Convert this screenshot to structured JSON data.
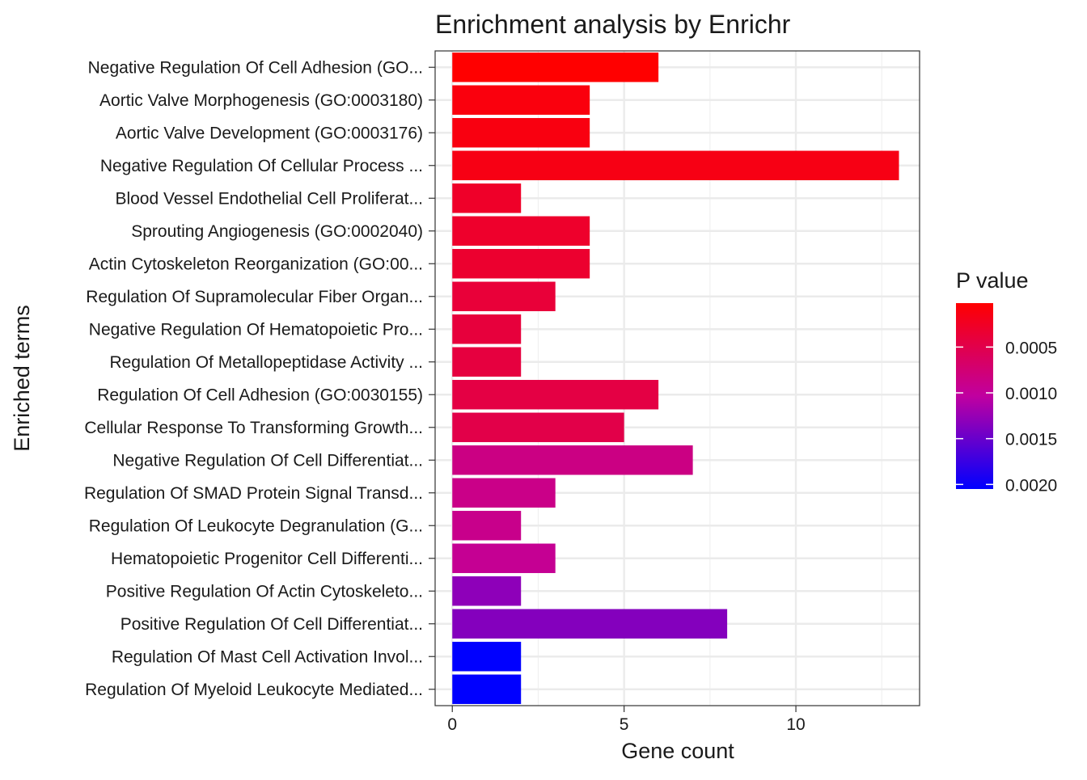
{
  "chart_data": {
    "type": "bar",
    "orientation": "horizontal",
    "title": "Enrichment analysis by Enrichr",
    "xlabel": "Gene count",
    "ylabel": "Enriched terms",
    "xlim": [
      -0.5,
      13.6
    ],
    "x_ticks": [
      0,
      5,
      10
    ],
    "x_tick_labels": [
      "0",
      "5",
      "10"
    ],
    "grid": true,
    "legend": {
      "title": "P value",
      "placement": "right",
      "ticks": [
        0.0005,
        0.001,
        0.0015,
        0.002
      ],
      "tick_labels": [
        "0.0005",
        "0.0010",
        "0.0015",
        "0.0020"
      ],
      "range": [
        2e-05,
        0.00205
      ],
      "color_low": "#FF0000",
      "color_high": "#0000FF"
    },
    "categories": [
      "Negative Regulation Of Cell Adhesion (GO...",
      "Aortic Valve Morphogenesis (GO:0003180)",
      "Aortic Valve Development (GO:0003176)",
      "Negative Regulation Of Cellular Process ...",
      "Blood Vessel Endothelial Cell Proliferat...",
      "Sprouting Angiogenesis (GO:0002040)",
      "Actin Cytoskeleton Reorganization (GO:00...",
      "Regulation Of Supramolecular Fiber Organ...",
      "Negative Regulation Of Hematopoietic Pro...",
      "Regulation Of Metallopeptidase Activity ...",
      "Regulation Of Cell Adhesion (GO:0030155)",
      "Cellular Response To Transforming Growth...",
      "Negative Regulation Of Cell Differentiat...",
      "Regulation Of SMAD Protein Signal Transd...",
      "Regulation Of Leukocyte Degranulation (G...",
      "Hematopoietic Progenitor Cell Differenti...",
      "Positive Regulation Of Actin Cytoskeleto...",
      "Positive Regulation Of Cell Differentiat...",
      "Regulation Of Mast Cell Activation Invol...",
      "Regulation Of Myeloid Leukocyte Mediated..."
    ],
    "values": [
      6,
      4,
      4,
      13,
      2,
      4,
      4,
      3,
      2,
      2,
      6,
      5,
      7,
      3,
      2,
      3,
      2,
      8,
      2,
      2
    ],
    "p_values": [
      2e-05,
      0.0001,
      0.00012,
      0.00015,
      0.00028,
      0.0003,
      0.00032,
      0.00038,
      0.0004,
      0.00042,
      0.00045,
      0.00048,
      0.00085,
      0.00088,
      0.0009,
      0.00095,
      0.0013,
      0.00135,
      0.00205,
      0.00205
    ]
  }
}
